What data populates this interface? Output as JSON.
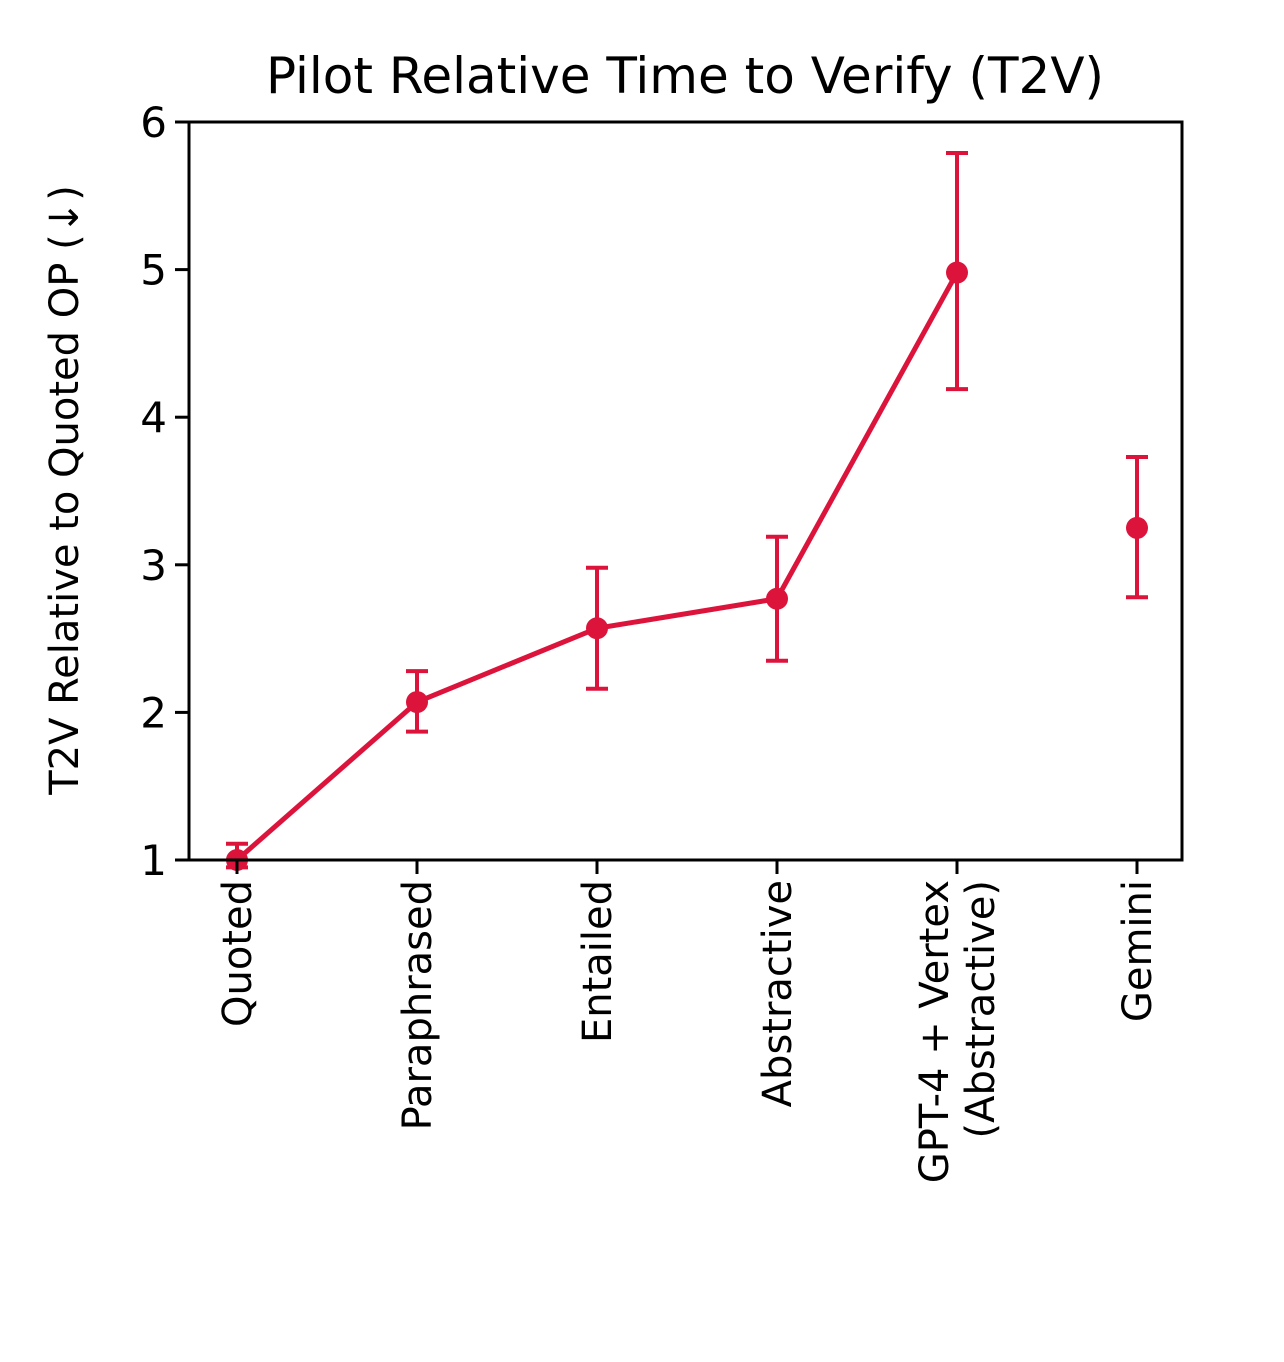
{
  "chart_data": {
    "type": "line",
    "title": "Pilot Relative Time to Verify (T2V)",
    "xlabel": "",
    "ylabel": "T2V Relative to Quoted OP (↓)",
    "ylim": [
      1,
      6
    ],
    "yticks": [
      "1",
      "2",
      "3",
      "4",
      "5",
      "6"
    ],
    "grid": false,
    "color": "#dc143c",
    "categories": [
      [
        "Quoted"
      ],
      [
        "Paraphrased"
      ],
      [
        "Entailed"
      ],
      [
        "Abstractive"
      ],
      [
        "GPT-4 + Vertex",
        "(Abstractive)"
      ],
      [
        "Gemini"
      ]
    ],
    "series": [
      {
        "values": [
          1.0,
          2.07,
          2.57,
          2.77,
          4.98,
          3.25
        ],
        "error_low": [
          0.95,
          1.87,
          2.16,
          2.35,
          4.19,
          2.78
        ],
        "error_high": [
          1.11,
          2.28,
          2.98,
          3.19,
          5.79,
          3.73
        ],
        "connected": [
          true,
          true,
          true,
          true,
          true,
          false
        ]
      }
    ]
  }
}
